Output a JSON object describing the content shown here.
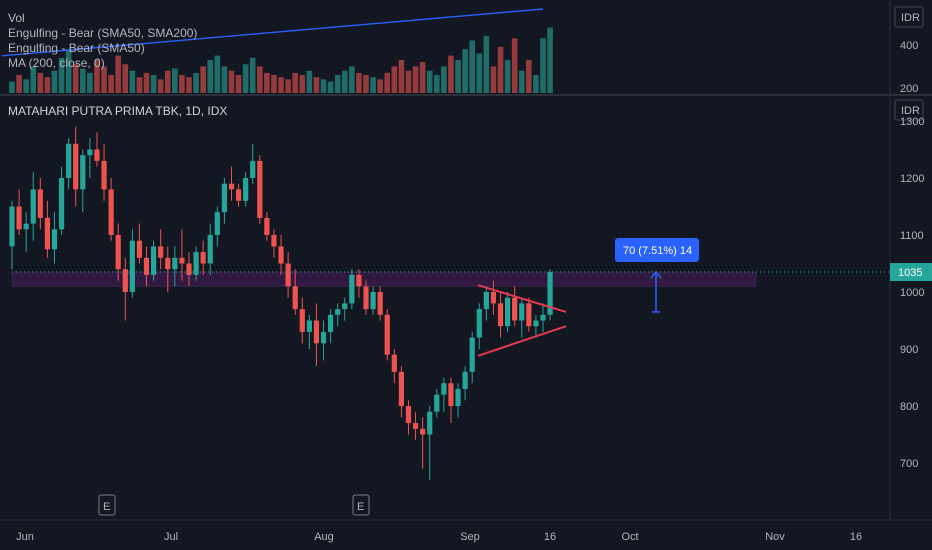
{
  "symbol_title": "MATAHARI PUTRA PRIMA TBK, 1D, IDX",
  "currency": "IDR",
  "legend": [
    "Vol",
    "Engulfing - Bear (SMA50, SMA200)",
    "Engulfing - Bear (SMA50)",
    "MA (200, close, 0)"
  ],
  "last_price_label": "1035",
  "measure_label": "70 (7.51%) 14",
  "earnings_marker": "E",
  "colors": {
    "background": "#131722",
    "up": "#26a69a",
    "down": "#ef5350",
    "zone": "#9c27b0",
    "triangle": "#e53950",
    "ma_line": "#2962ff",
    "measure": "#2962ff"
  },
  "chart_data": [
    {
      "type": "candlestick",
      "title": "MATAHARI PUTRA PRIMA TBK, 1D, IDX",
      "ylim": [
        630,
        1320
      ],
      "y_ticks": [
        700,
        800,
        900,
        1000,
        1100,
        1200,
        1300
      ],
      "x_ticks": [
        "Jun",
        "Jul",
        "Aug",
        "Sep",
        "16",
        "Oct",
        "Nov",
        "16"
      ],
      "last_price": 1035,
      "ohlc": [
        [
          1080,
          1160,
          1040,
          1150
        ],
        [
          1150,
          1180,
          1100,
          1110
        ],
        [
          1110,
          1140,
          1070,
          1120
        ],
        [
          1120,
          1210,
          1090,
          1180
        ],
        [
          1180,
          1200,
          1110,
          1130
        ],
        [
          1130,
          1160,
          1060,
          1075
        ],
        [
          1075,
          1140,
          1050,
          1110
        ],
        [
          1110,
          1220,
          1100,
          1200
        ],
        [
          1200,
          1270,
          1180,
          1260
        ],
        [
          1260,
          1290,
          1150,
          1180
        ],
        [
          1180,
          1250,
          1140,
          1240
        ],
        [
          1240,
          1270,
          1200,
          1250
        ],
        [
          1250,
          1280,
          1220,
          1230
        ],
        [
          1230,
          1260,
          1160,
          1180
        ],
        [
          1180,
          1200,
          1090,
          1100
        ],
        [
          1100,
          1120,
          1020,
          1040
        ],
        [
          1040,
          1060,
          950,
          1000
        ],
        [
          1000,
          1110,
          990,
          1090
        ],
        [
          1090,
          1120,
          1050,
          1060
        ],
        [
          1060,
          1080,
          1010,
          1030
        ],
        [
          1030,
          1090,
          1020,
          1080
        ],
        [
          1080,
          1110,
          1040,
          1060
        ],
        [
          1060,
          1080,
          1000,
          1040
        ],
        [
          1040,
          1080,
          1010,
          1060
        ],
        [
          1060,
          1110,
          1020,
          1050
        ],
        [
          1050,
          1070,
          1010,
          1030
        ],
        [
          1030,
          1080,
          1020,
          1070
        ],
        [
          1070,
          1090,
          1030,
          1050
        ],
        [
          1050,
          1120,
          1030,
          1100
        ],
        [
          1100,
          1150,
          1080,
          1140
        ],
        [
          1140,
          1200,
          1120,
          1190
        ],
        [
          1190,
          1220,
          1160,
          1180
        ],
        [
          1180,
          1190,
          1150,
          1160
        ],
        [
          1160,
          1210,
          1150,
          1200
        ],
        [
          1200,
          1260,
          1190,
          1230
        ],
        [
          1230,
          1240,
          1120,
          1130
        ],
        [
          1130,
          1140,
          1090,
          1100
        ],
        [
          1100,
          1110,
          1060,
          1080
        ],
        [
          1080,
          1100,
          1030,
          1050
        ],
        [
          1050,
          1070,
          990,
          1010
        ],
        [
          1010,
          1040,
          960,
          970
        ],
        [
          970,
          990,
          910,
          930
        ],
        [
          930,
          960,
          900,
          950
        ],
        [
          950,
          980,
          870,
          910
        ],
        [
          910,
          950,
          880,
          930
        ],
        [
          930,
          970,
          910,
          960
        ],
        [
          960,
          980,
          940,
          970
        ],
        [
          970,
          990,
          950,
          980
        ],
        [
          980,
          1040,
          970,
          1030
        ],
        [
          1030,
          1040,
          990,
          1010
        ],
        [
          1010,
          1020,
          960,
          970
        ],
        [
          970,
          1010,
          960,
          1000
        ],
        [
          1000,
          1010,
          950,
          960
        ],
        [
          960,
          970,
          880,
          890
        ],
        [
          890,
          900,
          840,
          860
        ],
        [
          860,
          870,
          780,
          800
        ],
        [
          800,
          810,
          750,
          770
        ],
        [
          770,
          790,
          740,
          760
        ],
        [
          760,
          780,
          690,
          750
        ],
        [
          750,
          800,
          670,
          790
        ],
        [
          790,
          830,
          780,
          820
        ],
        [
          820,
          850,
          790,
          840
        ],
        [
          840,
          850,
          770,
          800
        ],
        [
          800,
          840,
          780,
          830
        ],
        [
          830,
          870,
          810,
          860
        ],
        [
          860,
          930,
          840,
          920
        ],
        [
          920,
          980,
          900,
          970
        ],
        [
          970,
          1010,
          950,
          1000
        ],
        [
          1000,
          1020,
          960,
          980
        ],
        [
          980,
          1000,
          920,
          940
        ],
        [
          940,
          1000,
          930,
          990
        ],
        [
          990,
          1010,
          940,
          950
        ],
        [
          950,
          990,
          920,
          980
        ],
        [
          980,
          990,
          930,
          940
        ],
        [
          940,
          960,
          920,
          950
        ],
        [
          950,
          980,
          930,
          960
        ],
        [
          960,
          1040,
          950,
          1035
        ]
      ]
    },
    {
      "type": "bar",
      "title": "Vol",
      "y_ticks": [
        200,
        400
      ],
      "ylim": [
        150,
        520
      ],
      "values": [
        230,
        260,
        240,
        300,
        270,
        250,
        280,
        340,
        380,
        310,
        290,
        270,
        330,
        300,
        260,
        350,
        310,
        280,
        250,
        270,
        260,
        240,
        280,
        290,
        260,
        250,
        270,
        300,
        330,
        350,
        300,
        280,
        260,
        310,
        340,
        300,
        270,
        260,
        250,
        240,
        270,
        260,
        280,
        250,
        240,
        230,
        260,
        280,
        300,
        270,
        260,
        250,
        240,
        270,
        300,
        330,
        280,
        300,
        320,
        280,
        260,
        300,
        350,
        330,
        380,
        420,
        360,
        440,
        300,
        390,
        330,
        430,
        280,
        330,
        260,
        430,
        480
      ],
      "ma_line": [
        210,
        500
      ]
    }
  ]
}
